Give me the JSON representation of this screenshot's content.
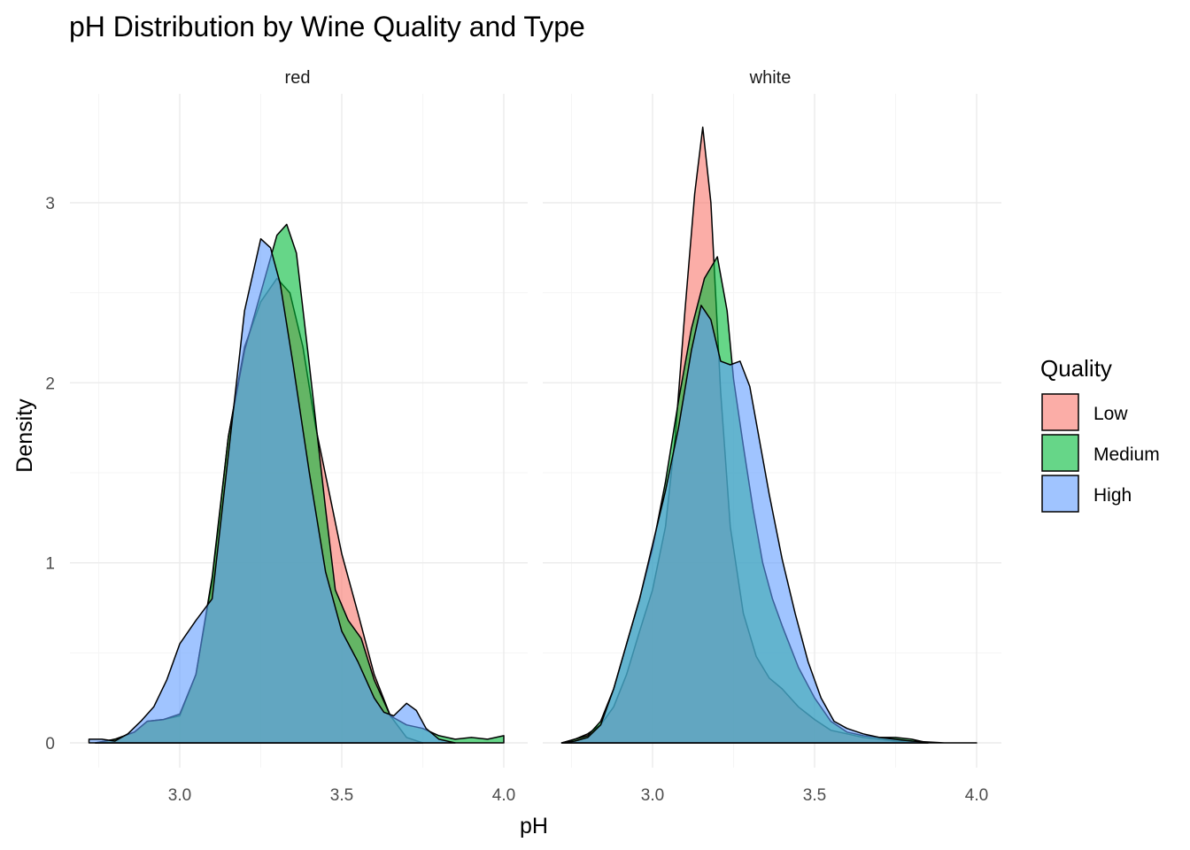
{
  "chart_data": {
    "type": "area",
    "title": "pH Distribution by Wine Quality and Type",
    "xlabel": "pH",
    "ylabel": "Density",
    "xlim": [
      2.72,
      4.01
    ],
    "ylim": [
      0,
      3.5
    ],
    "x_ticks": [
      "3.0",
      "3.5",
      "4.0"
    ],
    "y_ticks": [
      "0",
      "1",
      "2",
      "3"
    ],
    "grid": true,
    "legend": {
      "title": "Quality",
      "position": "right",
      "entries": [
        "Low",
        "Medium",
        "High"
      ]
    },
    "colors": {
      "Low": "#F8766D",
      "Medium": "#00BA38",
      "High": "#619CFF"
    },
    "fill_opacity": 0.6,
    "panels": [
      {
        "label": "red",
        "series": [
          {
            "name": "Low",
            "x": [
              2.74,
              2.8,
              2.86,
              2.9,
              2.95,
              3.0,
              3.05,
              3.1,
              3.15,
              3.2,
              3.25,
              3.3,
              3.34,
              3.38,
              3.42,
              3.46,
              3.5,
              3.55,
              3.6,
              3.65,
              3.7,
              3.75
            ],
            "y": [
              0,
              0.02,
              0.06,
              0.12,
              0.13,
              0.15,
              0.38,
              0.9,
              1.7,
              2.2,
              2.45,
              2.58,
              2.5,
              2.2,
              1.75,
              1.4,
              1.05,
              0.72,
              0.38,
              0.15,
              0.03,
              0
            ]
          },
          {
            "name": "Medium",
            "x": [
              2.74,
              2.8,
              2.86,
              2.9,
              2.95,
              3.0,
              3.05,
              3.1,
              3.15,
              3.2,
              3.25,
              3.3,
              3.33,
              3.36,
              3.4,
              3.45,
              3.48,
              3.52,
              3.56,
              3.6,
              3.65,
              3.7,
              3.75,
              3.8,
              3.85,
              3.9,
              3.95,
              4.0
            ],
            "y": [
              0,
              0.02,
              0.06,
              0.12,
              0.13,
              0.16,
              0.38,
              0.92,
              1.7,
              2.18,
              2.5,
              2.82,
              2.88,
              2.72,
              2.1,
              1.3,
              0.85,
              0.68,
              0.58,
              0.35,
              0.15,
              0.1,
              0.08,
              0.04,
              0.02,
              0.03,
              0.02,
              0.04
            ]
          },
          {
            "name": "High",
            "x": [
              2.72,
              2.76,
              2.8,
              2.84,
              2.88,
              2.92,
              2.96,
              3.0,
              3.05,
              3.1,
              3.15,
              3.2,
              3.25,
              3.28,
              3.31,
              3.35,
              3.4,
              3.45,
              3.5,
              3.55,
              3.6,
              3.63,
              3.66,
              3.7,
              3.73,
              3.76,
              3.8,
              3.85
            ],
            "y": [
              0.02,
              0.02,
              0.01,
              0.05,
              0.12,
              0.2,
              0.35,
              0.55,
              0.68,
              0.8,
              1.6,
              2.4,
              2.8,
              2.75,
              2.55,
              2.1,
              1.5,
              0.95,
              0.62,
              0.45,
              0.25,
              0.17,
              0.15,
              0.22,
              0.18,
              0.08,
              0.02,
              0
            ]
          }
        ]
      },
      {
        "label": "white",
        "series": [
          {
            "name": "Low",
            "x": [
              2.72,
              2.76,
              2.8,
              2.84,
              2.88,
              2.92,
              2.96,
              3.0,
              3.04,
              3.07,
              3.1,
              3.13,
              3.155,
              3.18,
              3.21,
              3.24,
              3.28,
              3.32,
              3.36,
              3.4,
              3.45,
              3.5,
              3.55,
              3.6,
              3.65,
              3.7,
              3.75,
              3.8,
              3.85
            ],
            "y": [
              0,
              0.02,
              0.05,
              0.1,
              0.2,
              0.38,
              0.62,
              0.85,
              1.2,
              1.7,
              2.4,
              3.05,
              3.42,
              3.0,
              1.95,
              1.2,
              0.72,
              0.48,
              0.36,
              0.3,
              0.2,
              0.13,
              0.07,
              0.05,
              0.03,
              0.02,
              0.01,
              0.01,
              0
            ]
          },
          {
            "name": "Medium",
            "x": [
              2.72,
              2.76,
              2.8,
              2.84,
              2.88,
              2.92,
              2.96,
              3.0,
              3.04,
              3.08,
              3.12,
              3.16,
              3.2,
              3.23,
              3.25,
              3.28,
              3.31,
              3.34,
              3.37,
              3.4,
              3.45,
              3.5,
              3.55,
              3.6,
              3.65,
              3.7,
              3.75,
              3.8,
              3.85
            ],
            "y": [
              0,
              0.02,
              0.04,
              0.12,
              0.3,
              0.55,
              0.8,
              1.08,
              1.45,
              1.9,
              2.3,
              2.58,
              2.7,
              2.4,
              2.02,
              1.65,
              1.3,
              1.0,
              0.8,
              0.65,
              0.42,
              0.25,
              0.12,
              0.06,
              0.04,
              0.03,
              0.03,
              0.02,
              0
            ]
          },
          {
            "name": "High",
            "x": [
              2.72,
              2.76,
              2.8,
              2.84,
              2.88,
              2.92,
              2.96,
              3.0,
              3.04,
              3.08,
              3.12,
              3.15,
              3.18,
              3.21,
              3.24,
              3.27,
              3.3,
              3.33,
              3.36,
              3.4,
              3.44,
              3.48,
              3.52,
              3.56,
              3.6,
              3.65,
              3.7,
              3.8,
              3.9,
              4.0
            ],
            "y": [
              0,
              0.01,
              0.03,
              0.1,
              0.3,
              0.55,
              0.8,
              1.1,
              1.4,
              1.75,
              2.18,
              2.43,
              2.35,
              2.12,
              2.1,
              2.12,
              1.98,
              1.68,
              1.38,
              1.02,
              0.72,
              0.45,
              0.25,
              0.12,
              0.08,
              0.05,
              0.03,
              0.01,
              0,
              0
            ]
          }
        ]
      }
    ]
  }
}
